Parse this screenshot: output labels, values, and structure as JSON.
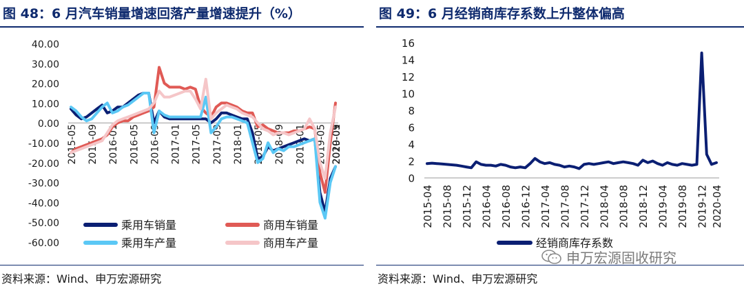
{
  "left_panel": {
    "title": "图 48：6 月汽车销量增速回落产量增速提升（%）",
    "source": "资料来源：Wind、申万宏源研究"
  },
  "right_panel": {
    "title": "图 49：6 月经销商库存系数上升整体偏高",
    "source": "资料来源：Wind、申万宏源研究"
  },
  "watermark": {
    "text": "申万宏源固收研究",
    "icon": "wechat-icon"
  },
  "chart_data": [
    {
      "type": "line",
      "title": "图 48：6 月汽车销量增速回落产量增速提升（%）",
      "xlabel": "",
      "ylabel": "",
      "ylim": [
        -60,
        40
      ],
      "yticks": [
        "40.00",
        "30.00",
        "20.00",
        "10.00",
        "0.00",
        "-10.00",
        "-20.00",
        "-30.00",
        "-40.00",
        "-50.00",
        "-60.00"
      ],
      "x_ticks": [
        "2015-05",
        "2015-09",
        "2016-01",
        "2016-05",
        "2016-09",
        "2017-01",
        "2017-05",
        "2017-09",
        "2018-01",
        "2018-05",
        "2018-09",
        "2019-01",
        "2019-05",
        "2019-09",
        "2020-01",
        "2020-05"
      ],
      "x_start": "2015-05",
      "legend_position": "bottom",
      "grid": false,
      "series": [
        {
          "name": "乘用车销量",
          "color": "#0b1f73",
          "width": 4,
          "values": [
            7,
            4,
            2,
            3,
            5,
            7,
            9,
            5,
            6,
            8,
            8,
            10,
            12,
            14,
            15,
            15,
            0,
            6,
            3,
            2,
            2,
            2,
            2,
            2,
            2,
            2,
            2,
            0,
            2,
            5,
            5,
            4,
            3,
            2,
            2,
            -5,
            -18,
            -17,
            -12,
            -14,
            -13,
            -12,
            -11,
            -10,
            -9,
            -8,
            -9,
            -8,
            -35,
            -45,
            -28,
            -22
          ]
        },
        {
          "name": "商用车销量",
          "color": "#e05a55",
          "width": 4,
          "values": [
            -15,
            -13,
            -12,
            -11,
            -10,
            -9,
            -8,
            -6,
            -2,
            0,
            1,
            1,
            3,
            4,
            5,
            6,
            8,
            28,
            20,
            18,
            18,
            18,
            17,
            18,
            17,
            8,
            5,
            3,
            8,
            10,
            10,
            9,
            8,
            6,
            5,
            5,
            -2,
            -1,
            -3,
            -4,
            -5,
            -5,
            -5,
            -4,
            -4,
            -3,
            -2,
            -3,
            -25,
            -35,
            -10,
            10
          ]
        },
        {
          "name": "乘用车产量",
          "color": "#5bc8f5",
          "width": 4,
          "values": [
            8,
            6,
            3,
            1,
            2,
            5,
            8,
            10,
            5,
            6,
            8,
            9,
            11,
            13,
            15,
            15,
            -5,
            6,
            4,
            3,
            3,
            3,
            3,
            3,
            3,
            3,
            13,
            -5,
            -2,
            2,
            3,
            3,
            2,
            1,
            0,
            -10,
            -20,
            -18,
            -10,
            -15,
            -13,
            -14,
            -12,
            -12,
            -11,
            -10,
            -9,
            -8,
            -40,
            -48,
            -30,
            -22
          ]
        },
        {
          "name": "商用车产量",
          "color": "#f5c6c8",
          "width": 4,
          "values": [
            -15,
            -14,
            -13,
            -12,
            -11,
            -10,
            -9,
            -5,
            -1,
            1,
            2,
            3,
            4,
            5,
            6,
            7,
            10,
            16,
            13,
            13,
            14,
            15,
            16,
            16,
            12,
            7,
            22,
            2,
            5,
            7,
            9,
            8,
            7,
            5,
            4,
            3,
            0,
            -3,
            -4,
            -6,
            -5,
            -5,
            -6,
            -5,
            -4,
            -3,
            2,
            -3,
            -20,
            -28,
            -5,
            8
          ]
        }
      ]
    },
    {
      "type": "line",
      "title": "图 49：6 月经销商库存系数上升整体偏高",
      "xlabel": "",
      "ylabel": "",
      "ylim": [
        0,
        16
      ],
      "yticks": [
        "16",
        "14",
        "12",
        "10",
        "8",
        "6",
        "4",
        "2",
        "0"
      ],
      "x_ticks": [
        "2015-04",
        "2015-08",
        "2015-12",
        "2016-04",
        "2016-08",
        "2016-12",
        "2017-04",
        "2017-08",
        "2017-12",
        "2018-04",
        "2018-08",
        "2018-12",
        "2019-04",
        "2019-08",
        "2019-12",
        "2020-04"
      ],
      "x_start": "2015-04",
      "legend_position": "bottom",
      "grid": false,
      "series": [
        {
          "name": "经销商库存系数",
          "color": "#0b1f73",
          "width": 4,
          "values": [
            1.7,
            1.75,
            1.7,
            1.65,
            1.6,
            1.55,
            1.5,
            1.4,
            1.3,
            1.2,
            1.9,
            1.6,
            1.5,
            1.5,
            1.4,
            1.6,
            1.5,
            1.3,
            1.2,
            1.3,
            1.2,
            1.7,
            2.3,
            1.9,
            1.7,
            1.8,
            1.6,
            1.5,
            1.3,
            1.4,
            1.3,
            1.1,
            1.6,
            1.7,
            1.6,
            1.7,
            1.8,
            1.9,
            1.7,
            1.8,
            1.9,
            1.8,
            1.7,
            1.5,
            2.1,
            1.8,
            2.0,
            1.7,
            1.5,
            1.8,
            1.6,
            1.5,
            1.7,
            1.6,
            1.5,
            1.6,
            14.8,
            2.8,
            1.6,
            1.8
          ]
        }
      ]
    }
  ]
}
